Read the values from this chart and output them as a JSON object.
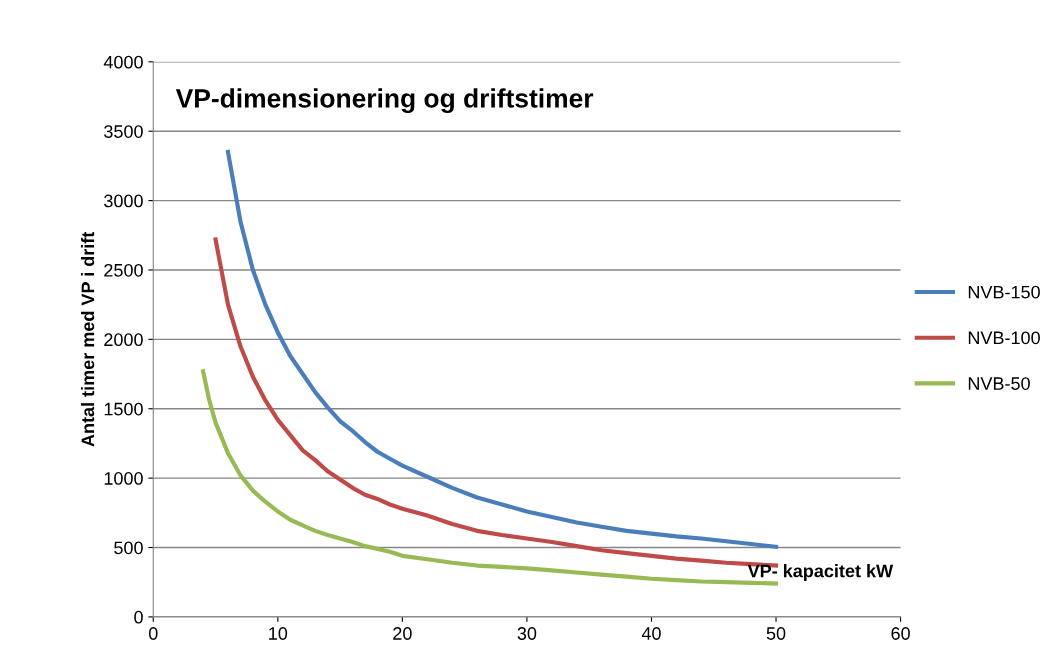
{
  "chart_data": {
    "type": "line",
    "title": "VP-dimensionering og driftstimer",
    "xlabel": "VP- kapacitet kW",
    "ylabel": "Antal timer med VP i drift",
    "xlim": [
      0,
      60
    ],
    "xticks": [
      0,
      10,
      20,
      30,
      40,
      50,
      60
    ],
    "ylim": [
      0,
      4000
    ],
    "yticks": [
      0,
      500,
      1000,
      1500,
      2000,
      2500,
      3000,
      3500,
      4000
    ],
    "grid": "y",
    "legend": "right",
    "marker": "none",
    "line_style": "solid",
    "series": [
      {
        "name": "NVB-150",
        "color": "#4a7ebb",
        "x": [
          6,
          7,
          8,
          9,
          10,
          11,
          12,
          13,
          14,
          15,
          16,
          17,
          18,
          19,
          20,
          22,
          24,
          26,
          28,
          30,
          32,
          34,
          36,
          38,
          40,
          42,
          44,
          46,
          48,
          50
        ],
        "values": [
          3350,
          2850,
          2500,
          2250,
          2050,
          1880,
          1750,
          1620,
          1510,
          1410,
          1340,
          1260,
          1190,
          1140,
          1090,
          1010,
          930,
          860,
          810,
          760,
          720,
          680,
          650,
          620,
          600,
          580,
          565,
          545,
          525,
          505
        ]
      },
      {
        "name": "NVB-100",
        "color": "#be4b48",
        "x": [
          5,
          6,
          7,
          8,
          9,
          10,
          11,
          12,
          13,
          14,
          15,
          16,
          17,
          18,
          19,
          20,
          22,
          24,
          26,
          28,
          30,
          32,
          34,
          36,
          38,
          40,
          42,
          44,
          46,
          48,
          50
        ],
        "values": [
          2720,
          2250,
          1950,
          1730,
          1560,
          1420,
          1310,
          1200,
          1130,
          1050,
          990,
          930,
          880,
          850,
          810,
          780,
          730,
          670,
          620,
          590,
          565,
          540,
          510,
          480,
          460,
          440,
          420,
          405,
          390,
          380,
          370
        ]
      },
      {
        "name": "NVB-50",
        "color": "#98b954",
        "x": [
          4,
          4.5,
          5,
          6,
          7,
          8,
          9,
          10,
          11,
          12,
          13,
          14,
          15,
          16,
          17,
          18,
          19,
          20,
          22,
          24,
          26,
          28,
          30,
          32,
          34,
          36,
          38,
          40,
          42,
          44,
          46,
          48,
          50
        ],
        "values": [
          1770,
          1560,
          1400,
          1180,
          1020,
          910,
          830,
          760,
          700,
          660,
          620,
          590,
          565,
          540,
          510,
          490,
          470,
          440,
          415,
          390,
          370,
          360,
          350,
          335,
          320,
          305,
          290,
          275,
          265,
          255,
          250,
          245,
          240
        ]
      }
    ]
  }
}
